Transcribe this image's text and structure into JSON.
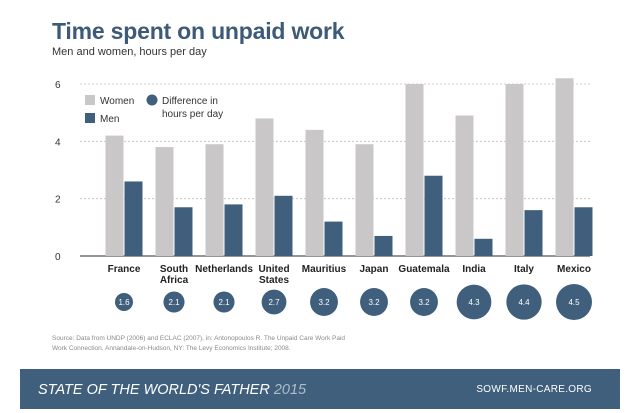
{
  "title": "Time spent on unpaid work",
  "subtitle": "Men and women, hours per day",
  "legend": {
    "women": "Women",
    "men": "Men",
    "difference_line1": "Difference in",
    "difference_line2": "hours per day"
  },
  "colors": {
    "women": "#c9c7c8",
    "men": "#3f5f7c",
    "difference": "#3f5f7c",
    "title": "#3d5a78"
  },
  "source": {
    "line1": "Source: Data from UNDP (2006) and ECLAC (2007), in: Antonopoulos R. The Unpaid Care Work Paid",
    "line2": "Work Connection. Annandale-on-Hudson, NY: The Levy Economics Institute; 2008."
  },
  "footer": {
    "left_text": "STATE OF THE WORLD'S FATHER",
    "year": "2015",
    "url": "SOWF.MEN-CARE.ORG"
  },
  "chart_data": {
    "type": "bar",
    "title": "Time spent on unpaid work",
    "subtitle": "Men and women, hours per day",
    "categories": [
      [
        "France"
      ],
      [
        "South",
        "Africa"
      ],
      [
        "Netherlands"
      ],
      [
        "United",
        "States"
      ],
      [
        "Mauritius"
      ],
      [
        "Japan"
      ],
      [
        "Guatemala"
      ],
      [
        "India"
      ],
      [
        "Italy"
      ],
      [
        "Mexico"
      ]
    ],
    "series": [
      {
        "name": "Women",
        "values": [
          4.2,
          3.8,
          3.9,
          4.8,
          4.4,
          3.9,
          6.0,
          4.9,
          6.0,
          6.2
        ]
      },
      {
        "name": "Men",
        "values": [
          2.6,
          1.7,
          1.8,
          2.1,
          1.2,
          0.7,
          2.8,
          0.6,
          1.6,
          1.7
        ]
      }
    ],
    "difference": {
      "name": "Difference in hours per day",
      "labels": [
        "1.6",
        "2.1",
        "2.1",
        "2.7",
        "3.2",
        "3.2",
        "3.2",
        "4.3",
        "4.4",
        "4.5"
      ]
    },
    "y_ticks": [
      "0",
      "2",
      "4",
      "6"
    ],
    "ylim": [
      0,
      6.4
    ],
    "grid": true,
    "legend_position": "top-left"
  }
}
